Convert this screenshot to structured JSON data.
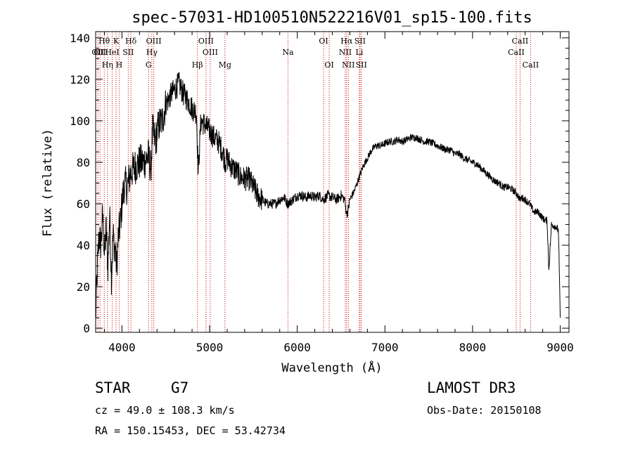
{
  "chart_data": {
    "type": "line",
    "title": "spec-57031-HD100510N522216V01_sp15-100.fits",
    "xlabel": "Wavelength (Å)",
    "ylabel": "Flux (relative)",
    "xlim": [
      3700,
      9100
    ],
    "ylim": [
      -2,
      143
    ],
    "xticks": [
      4000,
      5000,
      6000,
      7000,
      8000,
      9000
    ],
    "yticks": [
      0,
      20,
      40,
      60,
      80,
      100,
      120,
      140
    ],
    "series": [
      {
        "name": "flux",
        "x": [
          3700,
          3720,
          3740,
          3760,
          3780,
          3800,
          3820,
          3840,
          3860,
          3880,
          3900,
          3920,
          3940,
          3960,
          3980,
          4000,
          4030,
          4060,
          4100,
          4150,
          4200,
          4250,
          4300,
          4330,
          4350,
          4380,
          4420,
          4460,
          4500,
          4550,
          4600,
          4650,
          4700,
          4750,
          4800,
          4850,
          4870,
          4900,
          4950,
          5000,
          5050,
          5100,
          5150,
          5180,
          5200,
          5250,
          5300,
          5350,
          5400,
          5450,
          5500,
          5550,
          5600,
          5650,
          5700,
          5750,
          5800,
          5850,
          5890,
          5950,
          6000,
          6050,
          6100,
          6150,
          6200,
          6250,
          6300,
          6350,
          6400,
          6450,
          6500,
          6540,
          6563,
          6580,
          6600,
          6650,
          6700,
          6750,
          6800,
          6850,
          6900,
          6950,
          7000,
          7050,
          7100,
          7150,
          7200,
          7250,
          7300,
          7350,
          7400,
          7450,
          7500,
          7550,
          7600,
          7650,
          7700,
          7750,
          7800,
          7850,
          7900,
          7950,
          8000,
          8050,
          8100,
          8150,
          8200,
          8250,
          8300,
          8350,
          8400,
          8450,
          8500,
          8542,
          8560,
          8600,
          8650,
          8700,
          8750,
          8800,
          8830,
          8850,
          8870,
          8900,
          8950,
          8980,
          9000
        ],
        "values": [
          5,
          30,
          45,
          40,
          55,
          35,
          48,
          30,
          55,
          25,
          45,
          38,
          30,
          45,
          50,
          60,
          70,
          68,
          75,
          78,
          80,
          80,
          83,
          77,
          95,
          90,
          98,
          100,
          108,
          112,
          115,
          118,
          113,
          110,
          106,
          104,
          75,
          100,
          98,
          95,
          92,
          90,
          85,
          80,
          82,
          78,
          76,
          73,
          72,
          72,
          68,
          64,
          62,
          60,
          60,
          60,
          62,
          63,
          60,
          62,
          64,
          64,
          63,
          64,
          63,
          64,
          62,
          64,
          63,
          62,
          64,
          62,
          55,
          57,
          62,
          66,
          72,
          78,
          82,
          86,
          88,
          88,
          89,
          90,
          90,
          91,
          90,
          91,
          92,
          92,
          91,
          90,
          90,
          89,
          88,
          87,
          86,
          86,
          84,
          84,
          82,
          81,
          80,
          79,
          77,
          75,
          73,
          71,
          70,
          68,
          68,
          67,
          65,
          62,
          63,
          62,
          60,
          56,
          56,
          53,
          52,
          52,
          28,
          50,
          49,
          47,
          5
        ]
      }
    ],
    "lines": [
      {
        "x": 3726,
        "labels": [
          "OII"
        ],
        "row": 2
      },
      {
        "x": 3750,
        "labels": [
          "OII"
        ],
        "row": 2
      },
      {
        "x": 3798,
        "labels": [
          "Hθ"
        ],
        "row": 1
      },
      {
        "x": 3835,
        "labels": [
          "Hη"
        ],
        "row": 3
      },
      {
        "x": 3889,
        "labels": [
          "HeI"
        ],
        "row": 2
      },
      {
        "x": 3933,
        "labels": [
          "K"
        ],
        "row": 1
      },
      {
        "x": 3968,
        "labels": [
          "H"
        ],
        "row": 3
      },
      {
        "x": 4072,
        "labels": [
          "SII"
        ],
        "row": 2
      },
      {
        "x": 4102,
        "labels": [
          "Hδ"
        ],
        "row": 1
      },
      {
        "x": 4304,
        "labels": [
          "G"
        ],
        "row": 3
      },
      {
        "x": 4341,
        "labels": [
          "Hγ"
        ],
        "row": 2
      },
      {
        "x": 4363,
        "labels": [
          "OIII"
        ],
        "row": 1
      },
      {
        "x": 4861,
        "labels": [
          "Hβ"
        ],
        "row": 3
      },
      {
        "x": 4959,
        "labels": [
          "OIII"
        ],
        "row": 1
      },
      {
        "x": 5007,
        "labels": [
          "OIII"
        ],
        "row": 2
      },
      {
        "x": 5175,
        "labels": [
          "Mg"
        ],
        "row": 3
      },
      {
        "x": 5894,
        "labels": [
          "Na"
        ],
        "row": 2
      },
      {
        "x": 6300,
        "labels": [
          "OI"
        ],
        "row": 1
      },
      {
        "x": 6364,
        "labels": [
          "OI"
        ],
        "row": 3
      },
      {
        "x": 6548,
        "labels": [
          "NII"
        ],
        "row": 2
      },
      {
        "x": 6563,
        "labels": [
          "Hα"
        ],
        "row": 1
      },
      {
        "x": 6583,
        "labels": [
          "NII"
        ],
        "row": 3
      },
      {
        "x": 6708,
        "labels": [
          "Li"
        ],
        "row": 2
      },
      {
        "x": 6716,
        "labels": [
          "SII"
        ],
        "row": 1
      },
      {
        "x": 6731,
        "labels": [
          "SII"
        ],
        "row": 3
      },
      {
        "x": 8498,
        "labels": [
          "CaII"
        ],
        "row": 2
      },
      {
        "x": 8542,
        "labels": [
          "CaII"
        ],
        "row": 1
      },
      {
        "x": 8662,
        "labels": [
          "CaII"
        ],
        "row": 3
      }
    ],
    "colors": {
      "line": "#000000",
      "marker": "#cc0000"
    }
  },
  "info": {
    "object_type": "STAR",
    "subclass": "G7",
    "survey": "LAMOST DR3",
    "cz": "cz = 49.0 ± 108.3 km/s",
    "obs_date": "Obs-Date: 20150108",
    "coords": "RA = 150.15453, DEC =  53.42734"
  }
}
